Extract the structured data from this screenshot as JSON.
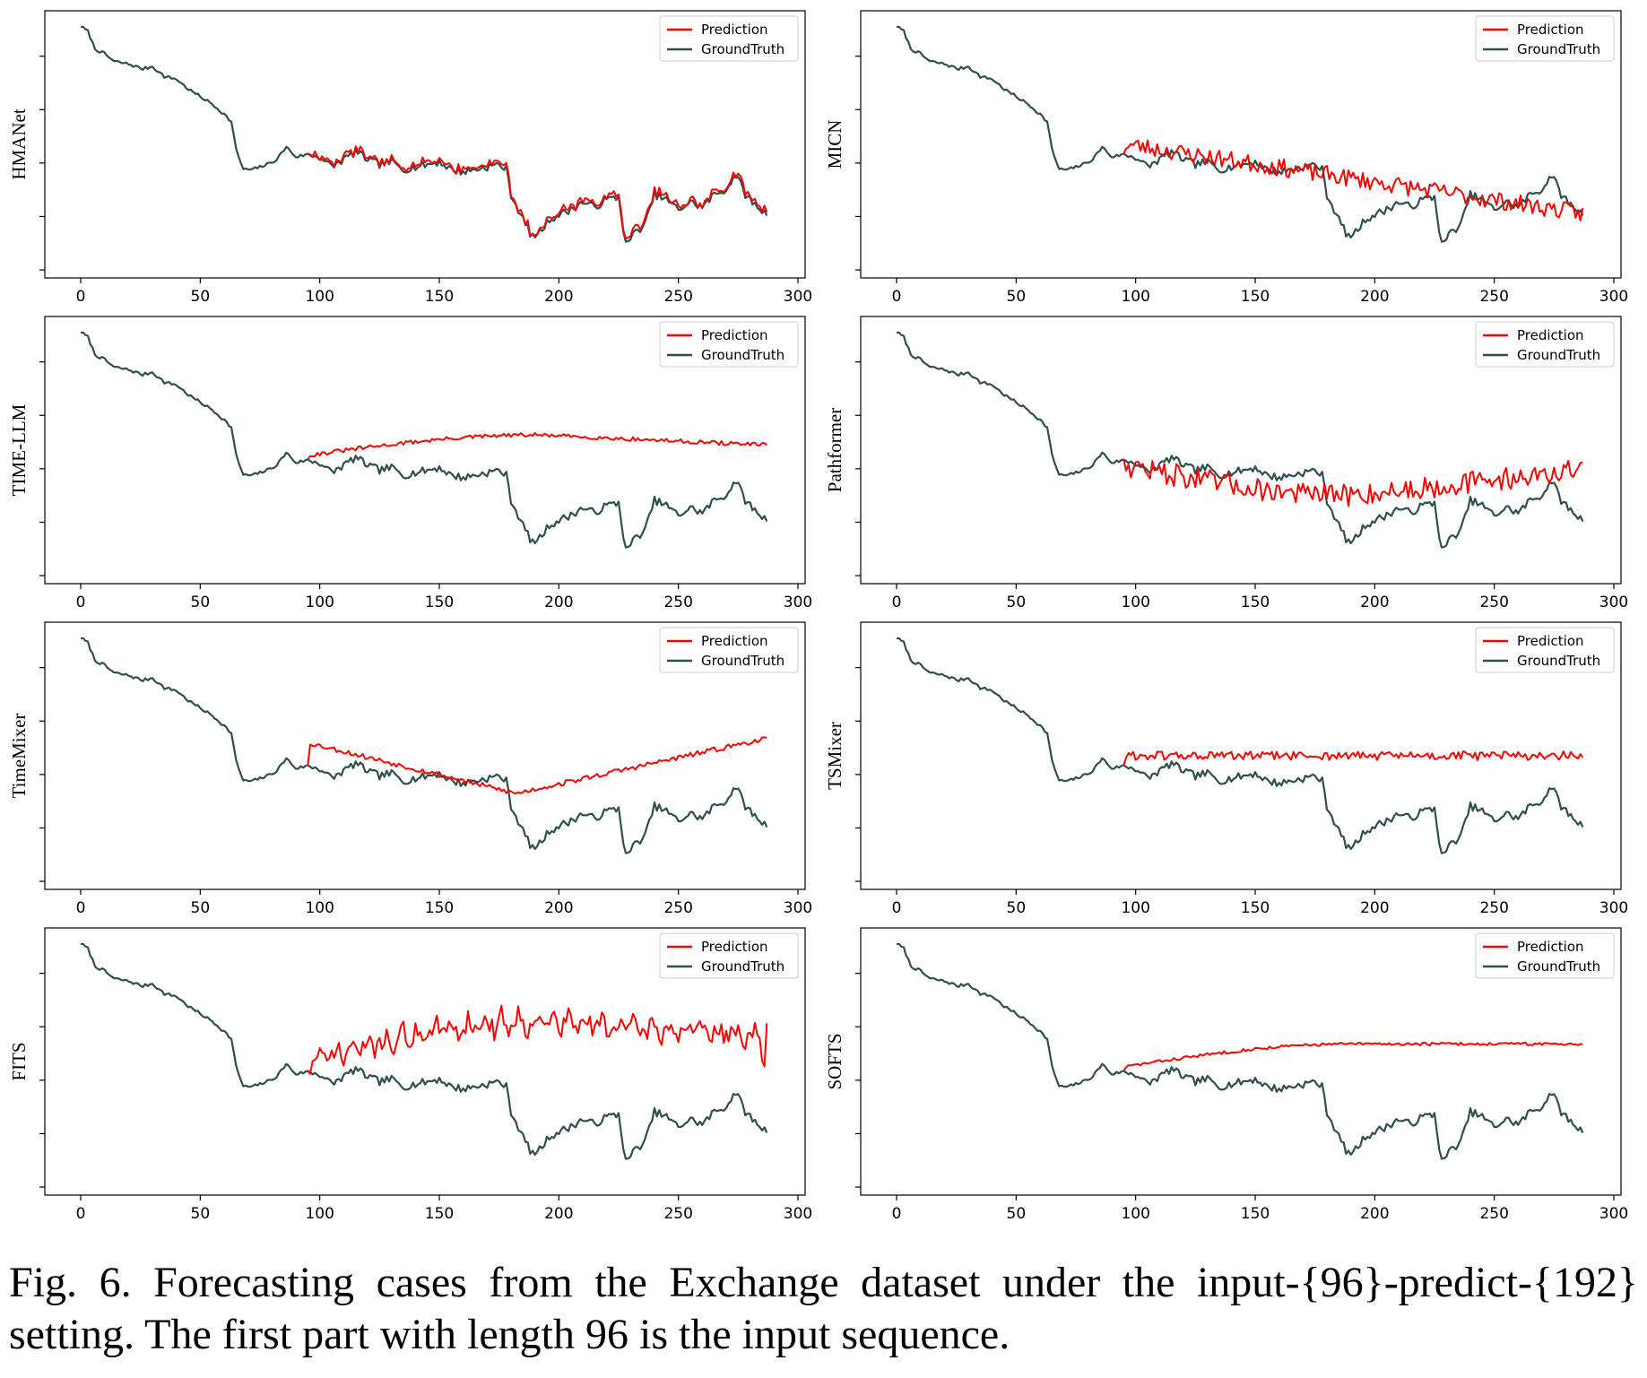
{
  "figure": {
    "caption": "Fig. 6.  Forecasting cases from the Exchange dataset under the input-{96}-predict-{192} setting. The first part with length 96 is the input sequence."
  },
  "colors": {
    "prediction": "#ff0000",
    "ground_truth": "#2f4f4f",
    "axes": "#000000"
  },
  "chart_data": [
    {
      "type": "line",
      "ylabel": "HMANet",
      "xlim": [
        -15,
        303
      ],
      "xticks": [
        0,
        50,
        100,
        150,
        200,
        250,
        300
      ],
      "legend": "top-right",
      "series": [
        {
          "name": "Prediction",
          "style": "tracking",
          "noise": 0.008,
          "bias": 0.0,
          "seed": 11
        },
        {
          "name": "GroundTruth",
          "x_range": [
            0,
            287
          ]
        }
      ]
    },
    {
      "type": "line",
      "ylabel": "MICN",
      "xlim": [
        -15,
        303
      ],
      "xticks": [
        0,
        50,
        100,
        150,
        200,
        250,
        300
      ],
      "legend": "top-right",
      "series": [
        {
          "name": "Prediction",
          "style": "noisy-trend",
          "start": 0.5,
          "end": 0.225,
          "noise": 0.035,
          "seed": 23
        },
        {
          "name": "GroundTruth",
          "x_range": [
            0,
            287
          ]
        }
      ]
    },
    {
      "type": "line",
      "ylabel": "TIME-LLM",
      "xlim": [
        -15,
        303
      ],
      "xticks": [
        0,
        50,
        100,
        150,
        200,
        250,
        300
      ],
      "legend": "top-right",
      "series": [
        {
          "name": "Prediction",
          "style": "smooth-arc",
          "start": 0.48,
          "mid": 0.56,
          "end": 0.52,
          "noise": 0.008,
          "seed": 31
        },
        {
          "name": "GroundTruth",
          "x_range": [
            0,
            287
          ]
        }
      ]
    },
    {
      "type": "line",
      "ylabel": "Pathformer",
      "xlim": [
        -15,
        303
      ],
      "xticks": [
        0,
        50,
        100,
        150,
        200,
        250,
        300
      ],
      "legend": "top-right",
      "series": [
        {
          "name": "Prediction",
          "style": "noisy-arc",
          "start": 0.44,
          "mid": 0.32,
          "end": 0.42,
          "noise": 0.045,
          "seed": 47
        },
        {
          "name": "GroundTruth",
          "x_range": [
            0,
            287
          ]
        }
      ]
    },
    {
      "type": "line",
      "ylabel": "TimeMixer",
      "xlim": [
        -15,
        303
      ],
      "xticks": [
        0,
        50,
        100,
        150,
        200,
        250,
        300
      ],
      "legend": "top-right",
      "series": [
        {
          "name": "Prediction",
          "style": "v-shape",
          "start": 0.55,
          "mid": 0.35,
          "end": 0.57,
          "noise": 0.01,
          "seed": 53
        },
        {
          "name": "GroundTruth",
          "x_range": [
            0,
            287
          ]
        }
      ]
    },
    {
      "type": "line",
      "ylabel": "TSMixer",
      "xlim": [
        -15,
        303
      ],
      "xticks": [
        0,
        50,
        100,
        150,
        200,
        250,
        300
      ],
      "legend": "top-right",
      "series": [
        {
          "name": "Prediction",
          "style": "flat-noisy",
          "start": 0.5,
          "end": 0.5,
          "noise": 0.018,
          "seed": 61
        },
        {
          "name": "GroundTruth",
          "x_range": [
            0,
            287
          ]
        }
      ]
    },
    {
      "type": "line",
      "ylabel": "FITS",
      "xlim": [
        -15,
        303
      ],
      "xticks": [
        0,
        50,
        100,
        150,
        200,
        250,
        300
      ],
      "legend": "top-right",
      "series": [
        {
          "name": "Prediction",
          "style": "oscillating",
          "start": 0.5,
          "mid": 0.66,
          "end": 0.6,
          "noise": 0.04,
          "seed": 71
        },
        {
          "name": "GroundTruth",
          "x_range": [
            0,
            287
          ]
        }
      ]
    },
    {
      "type": "line",
      "ylabel": "SOFTS",
      "xlim": [
        -15,
        303
      ],
      "xticks": [
        0,
        50,
        100,
        150,
        200,
        250,
        300
      ],
      "legend": "top-right",
      "series": [
        {
          "name": "Prediction",
          "style": "smooth-arc",
          "start": 0.48,
          "mid": 0.57,
          "end": 0.57,
          "noise": 0.006,
          "seed": 83
        },
        {
          "name": "GroundTruth",
          "x_range": [
            0,
            287
          ]
        }
      ]
    }
  ]
}
